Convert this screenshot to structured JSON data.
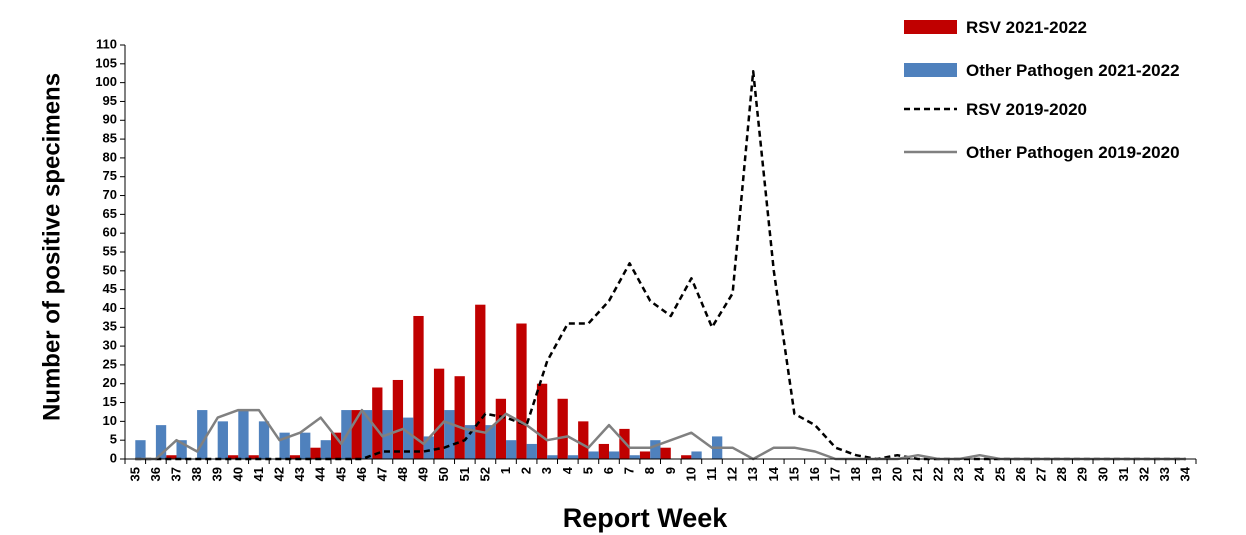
{
  "chart_data": {
    "type": "bar",
    "xlabel": "Report Week",
    "ylabel": "Number of positive specimens",
    "ylim": [
      0,
      110
    ],
    "ytick_step": 5,
    "grid": false,
    "legend_position": "top-right",
    "categories": [
      "35",
      "36",
      "37",
      "38",
      "39",
      "40",
      "41",
      "42",
      "43",
      "44",
      "45",
      "46",
      "47",
      "48",
      "49",
      "50",
      "51",
      "52",
      "1",
      "2",
      "3",
      "4",
      "5",
      "6",
      "7",
      "8",
      "9",
      "10",
      "11",
      "12",
      "13",
      "14",
      "15",
      "16",
      "17",
      "18",
      "19",
      "20",
      "21",
      "22",
      "23",
      "24",
      "25",
      "26",
      "27",
      "28",
      "29",
      "30",
      "31",
      "32",
      "33",
      "34"
    ],
    "series": [
      {
        "name": "RSV 2021-2022",
        "kind": "bar",
        "color": "#c00000",
        "values": [
          0,
          0,
          1,
          0,
          0,
          1,
          1,
          0,
          1,
          3,
          7,
          13,
          19,
          21,
          38,
          24,
          22,
          41,
          16,
          36,
          20,
          16,
          10,
          4,
          8,
          2,
          3,
          1,
          0,
          null,
          null,
          null,
          null,
          null,
          null,
          null,
          null,
          null,
          null,
          null,
          null,
          null,
          null,
          null,
          null,
          null,
          null,
          null,
          null,
          null,
          null,
          null
        ]
      },
      {
        "name": "Other Pathogen 2021-2022",
        "kind": "bar",
        "color": "#4f81bd",
        "values": [
          5,
          9,
          5,
          13,
          10,
          13,
          10,
          7,
          7,
          5,
          13,
          13,
          13,
          11,
          6,
          13,
          9,
          9,
          5,
          4,
          1,
          1,
          2,
          2,
          1,
          5,
          0,
          2,
          6,
          null,
          null,
          null,
          null,
          null,
          null,
          null,
          null,
          null,
          null,
          null,
          null,
          null,
          null,
          null,
          null,
          null,
          null,
          null,
          null,
          null,
          null,
          null
        ]
      },
      {
        "name": "RSV 2019-2020",
        "kind": "line",
        "dash": "dashed",
        "color": "#000000",
        "values": [
          0,
          0,
          0,
          0,
          0,
          0,
          0,
          0,
          0,
          0,
          0,
          0,
          2,
          2,
          2,
          3,
          5,
          12,
          11,
          9,
          26,
          36,
          36,
          42,
          52,
          42,
          38,
          48,
          35,
          44,
          103,
          50,
          12,
          9,
          3,
          1,
          0,
          1,
          0,
          0,
          0,
          0,
          0,
          0,
          0,
          0,
          0,
          0,
          0,
          0,
          0,
          0
        ]
      },
      {
        "name": "Other Pathogen 2019-2020",
        "kind": "line",
        "dash": "solid",
        "color": "#808080",
        "values": [
          0,
          0,
          5,
          2,
          11,
          13,
          13,
          5,
          7,
          11,
          4,
          13,
          6,
          8,
          4,
          10,
          8,
          7,
          12,
          9,
          5,
          6,
          3,
          9,
          3,
          3,
          5,
          7,
          3,
          3,
          0,
          3,
          3,
          2,
          0,
          0,
          0,
          0,
          1,
          0,
          0,
          1,
          0,
          0,
          0,
          0,
          0,
          0,
          0,
          0,
          0,
          0
        ]
      }
    ]
  }
}
